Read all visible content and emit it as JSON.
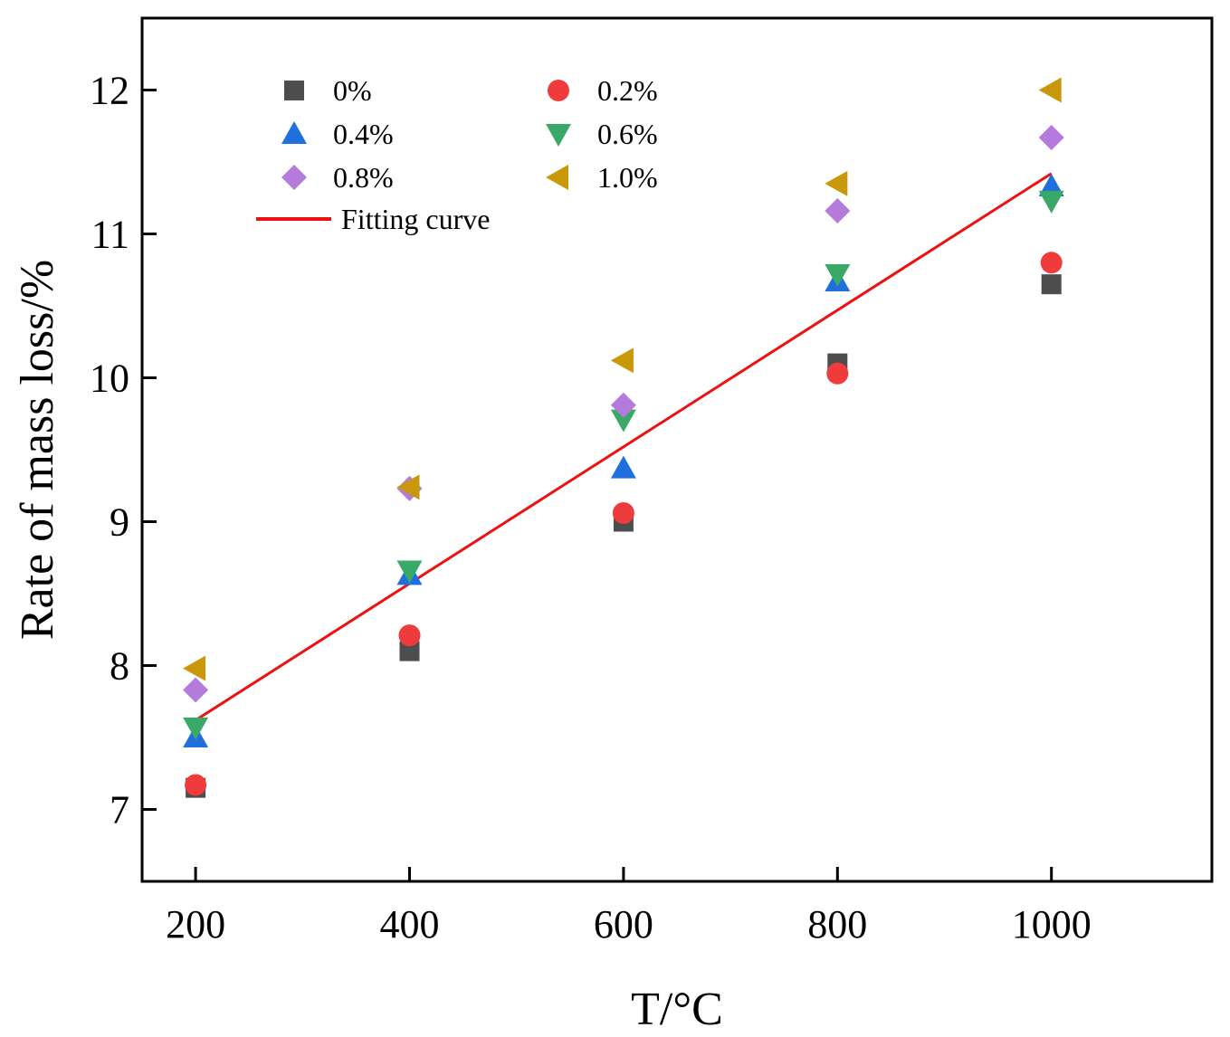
{
  "chart_data": {
    "type": "scatter",
    "title": "",
    "xlabel": "T/°C",
    "ylabel": "Rate of mass loss/%",
    "xlim": [
      150,
      1150
    ],
    "ylim": [
      6.5,
      12.5
    ],
    "x_ticks": [
      200,
      400,
      600,
      800,
      1000
    ],
    "x_tick_labels": [
      "200",
      "400",
      "600",
      "800",
      "1000"
    ],
    "y_ticks": [
      7,
      8,
      9,
      10,
      11,
      12
    ],
    "y_tick_labels": [
      "7",
      "8",
      "9",
      "10",
      "11",
      "12"
    ],
    "grid": false,
    "legend_position": "top-left",
    "x": [
      200,
      400,
      600,
      800,
      1000
    ],
    "series": [
      {
        "name": "0%",
        "marker": "square",
        "color": "#4d4d4d",
        "values": [
          7.15,
          8.1,
          9.0,
          10.1,
          10.65
        ]
      },
      {
        "name": "0.2%",
        "marker": "circle",
        "color": "#ef3b3b",
        "values": [
          7.17,
          8.21,
          9.06,
          10.03,
          10.8
        ]
      },
      {
        "name": "0.4%",
        "marker": "triangle-up",
        "color": "#1f6fdc",
        "values": [
          7.5,
          8.63,
          9.37,
          10.67,
          11.33
        ]
      },
      {
        "name": "0.6%",
        "marker": "triangle-down",
        "color": "#3aa866",
        "values": [
          7.57,
          8.66,
          9.71,
          10.72,
          11.23
        ]
      },
      {
        "name": "0.8%",
        "marker": "diamond",
        "color": "#b57bdc",
        "values": [
          7.83,
          9.23,
          9.81,
          11.16,
          11.67
        ]
      },
      {
        "name": "1.0%",
        "marker": "triangle-left",
        "color": "#c9980a",
        "values": [
          7.98,
          9.24,
          10.12,
          11.35,
          12.0
        ]
      }
    ],
    "fit": {
      "name": "Fitting curve",
      "color": "#ee1111",
      "x": [
        200,
        1000
      ],
      "y": [
        7.62,
        11.42
      ]
    }
  }
}
